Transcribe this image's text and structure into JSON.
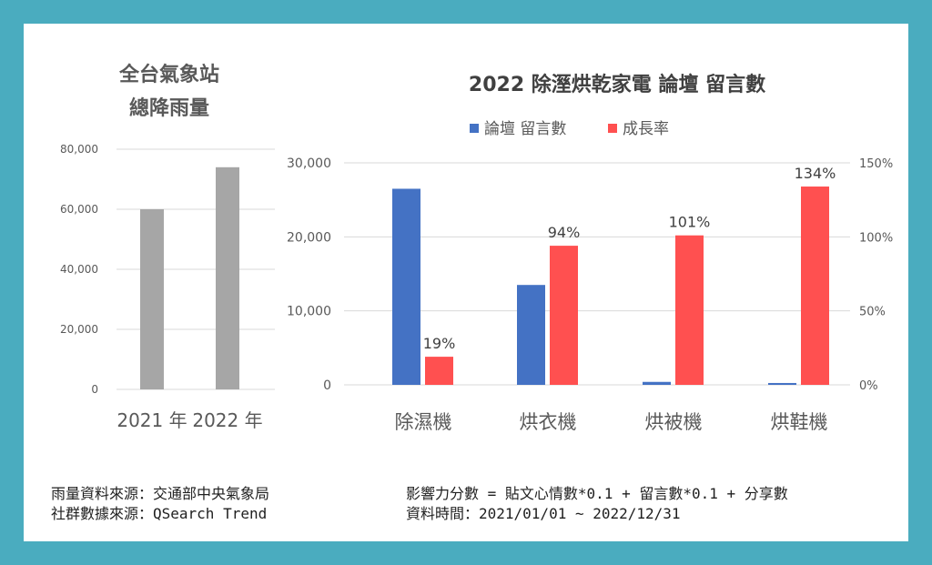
{
  "colors": {
    "frame": "#4aacbf",
    "comments": "#4472c4",
    "growth": "#ff5050",
    "rain_bar": "#a6a6a6",
    "grid": "#d9d9d9",
    "axis_text": "#595959"
  },
  "chart_data": [
    {
      "type": "bar",
      "title_lines": [
        "全台氣象站",
        "總降雨量"
      ],
      "categories": [
        "2021 年",
        "2022 年"
      ],
      "values": [
        60000,
        74000
      ],
      "ylim": [
        0,
        80000
      ],
      "yticks": [
        "0",
        "20,000",
        "40,000",
        "60,000",
        "80,000"
      ],
      "ytick_values": [
        0,
        20000,
        40000,
        60000,
        80000
      ],
      "grid": true
    },
    {
      "type": "bar",
      "title": "2022 除溼烘乾家電 論壇 留言數",
      "legend": [
        "論壇 留言數",
        "成長率"
      ],
      "legend_position": "top",
      "categories": [
        "除濕機",
        "烘衣機",
        "烘被機",
        "烘鞋機"
      ],
      "series": [
        {
          "name": "論壇 留言數",
          "axis": "left",
          "values": [
            26500,
            13500,
            400,
            250
          ]
        },
        {
          "name": "成長率",
          "axis": "right",
          "values": [
            19,
            94,
            101,
            134
          ],
          "labels": [
            "19%",
            "94%",
            "101%",
            "134%"
          ]
        }
      ],
      "ylim_left": [
        0,
        30000
      ],
      "yticks_left": [
        "0",
        "10,000",
        "20,000",
        "30,000"
      ],
      "ytick_values_left": [
        0,
        10000,
        20000,
        30000
      ],
      "ylim_right": [
        0,
        150
      ],
      "yticks_right": [
        "0%",
        "50%",
        "100%",
        "150%"
      ],
      "ytick_values_right": [
        0,
        50,
        100,
        150
      ],
      "grid": true
    }
  ],
  "notes": {
    "rain_source": "雨量資料來源：交通部中央氣象局",
    "social_source": "社群數據來源：QSearch Trend",
    "formula": "影響力分數 = 貼文心情數*0.1 + 留言數*0.1 + 分享數",
    "period": "資料時間：2021/01/01 ~ 2022/12/31"
  }
}
